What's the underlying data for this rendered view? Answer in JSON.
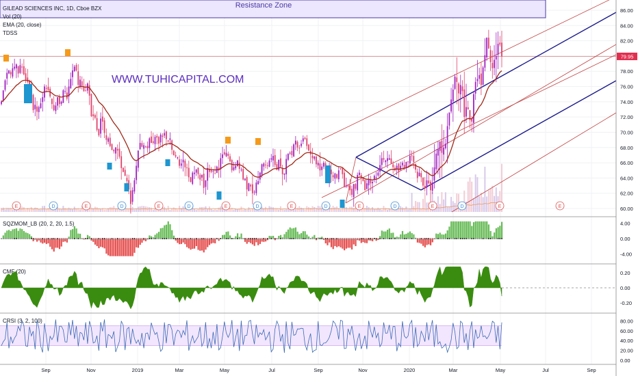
{
  "header": {
    "symbol": "GILEAD SCIENCES INC, 1D, Cboe BZX",
    "ind_vol": "Vol (20)",
    "ind_ema": "EMA (20, close)",
    "ind_tdss": "TDSS"
  },
  "watermark": "WWW.TUHICAPITAL.COM",
  "resistance_label": "Resistance Zone",
  "price_label": "79.95",
  "colors": {
    "up": "#a020c0",
    "down": "#e0406a",
    "ema": "#a02818",
    "channel_blue": "#1a1a8c",
    "channel_red": "#c04040",
    "osc_green": "#4caf3a",
    "osc_red": "#e03030",
    "cmf": "#3a8c10",
    "crsi": "#3a6ab0",
    "resistance": "#e8e0ff"
  },
  "chart_data": [
    {
      "type": "candlestick",
      "title": "GILEAD SCIENCES INC, 1D, Cboe BZX",
      "ylim": [
        59,
        87
      ],
      "y_ticks": [
        "86.00",
        "84.00",
        "82.00",
        "80.00",
        "78.00",
        "76.00",
        "74.00",
        "72.00",
        "70.00",
        "68.00",
        "66.00",
        "64.00",
        "62.00",
        "60.00"
      ],
      "x_labels": [
        "Sep",
        "Nov",
        "2019",
        "Mar",
        "May",
        "Jul",
        "Sep",
        "Nov",
        "2020",
        "Mar",
        "May",
        "Jul",
        "Sep"
      ],
      "last_price": 79.95,
      "resistance_zone": [
        85,
        87
      ],
      "close": [
        74,
        75.5,
        76.8,
        77.8,
        78.1,
        77.6,
        78.4,
        78.6,
        78.9,
        77.7,
        78.8,
        78.5,
        77.6,
        76.9,
        76.6,
        76.1,
        75.1,
        72.9,
        73.6,
        72.7,
        73.3,
        73.8,
        74.6,
        76.0,
        75.7,
        75.5,
        74.7,
        73.7,
        72.9,
        73.5,
        74.6,
        73.7,
        74.0,
        75.5,
        75.4,
        74.4,
        76.0,
        77.0,
        78.1,
        78.6,
        78.1,
        76.2,
        76.9,
        76.1,
        75.4,
        75.4,
        76.4,
        74.8,
        72.1,
        72.1,
        71.9,
        70.3,
        69.6,
        71.8,
        71.4,
        69.9,
        69.0,
        69.2,
        68.2,
        67.7,
        67.5,
        68.0,
        67.6,
        66.8,
        65.3,
        64.8,
        64.3,
        63.6,
        62.5,
        60.6,
        62.4,
        63.7,
        65.6,
        67.6,
        68.6,
        68.1,
        68.3,
        68.1,
        67.9,
        69.2,
        68.6,
        68.6,
        69.4,
        69.3,
        68.5,
        69.7,
        69.4,
        69.9,
        69.1,
        68.8,
        69.2,
        67.7,
        67.0,
        66.8,
        66.7,
        65.6,
        65.9,
        66.4,
        65.4,
        65.3,
        64.1,
        63.5,
        64.7,
        64.7,
        65.1,
        64.5,
        63.8,
        64.4,
        62.7,
        63.7,
        65.3,
        64.8,
        64.8,
        64.9,
        64.6,
        65.5,
        65.0,
        66.6,
        67.1,
        67.1,
        67.3,
        66.9,
        66.2,
        65.0,
        65.4,
        65.6,
        66.3,
        65.2,
        65.1,
        63.8,
        63.9,
        62.5,
        63.3,
        62.9,
        62.0,
        62.2,
        63.4,
        63.6,
        64.7,
        65.8,
        65.9,
        65.7,
        65.6,
        66.3,
        66.6,
        66.9,
        65.7,
        65.1,
        66.4,
        65.5,
        64.5,
        64.6,
        66.5,
        67.2,
        67.3,
        67.0,
        68.4,
        68.9,
        68.0,
        67.9,
        68.5,
        69.2,
        69.1,
        68.2,
        67.6,
        67.1,
        66.6,
        66.8,
        65.8,
        66.0,
        65.0,
        65.5,
        66.0,
        65.1,
        64.3,
        65.3,
        64.5,
        64.1,
        64.6,
        64.0,
        65.0,
        65.2,
        64.5,
        62.8,
        63.0,
        62.9,
        62.4,
        61.8,
        63.2,
        62.6,
        64.4,
        64.7,
        64.1,
        63.6,
        62.4,
        63.3,
        63.8,
        63.3,
        63.5,
        64.3,
        64.1,
        64.7,
        65.7,
        66.6,
        66.4,
        66.3,
        66.6,
        66.6,
        65.9,
        65.4,
        65.0,
        65.6,
        64.8,
        65.6,
        66.0,
        65.3,
        66.1,
        66.1,
        66.9,
        66.9,
        66.1,
        65.1,
        64.0,
        64.7,
        64.1,
        63.0,
        62.6,
        63.7,
        63.3,
        62.4,
        63.4,
        65.4,
        67.2,
        67.8,
        68.8,
        67.3,
        68.0,
        68.5,
        70.8,
        72.6,
        74.3,
        75.6,
        77.3,
        76.6,
        75.1,
        76.2,
        75.4,
        72.0,
        73.3,
        73.0,
        71.6,
        71.4,
        75.0,
        76.6,
        77.0,
        77.5,
        76.2,
        78.5,
        80.1,
        82.4,
        81.0,
        79.2,
        78.4,
        79.5,
        80.0,
        81.6,
        81.5,
        79.95
      ]
    },
    {
      "type": "bar",
      "title": "SQZMOM_LB (20, 2, 20, 1.5)",
      "ylim": [
        -5,
        5
      ],
      "y_ticks": [
        "4.00",
        "0.00",
        "-4.00"
      ]
    },
    {
      "type": "area",
      "title": "CMF (20)",
      "ylim": [
        -0.3,
        0.3
      ],
      "y_ticks": [
        "0.20",
        "0.00",
        "-0.20"
      ]
    },
    {
      "type": "line",
      "title": "CRSI (3, 2, 100)",
      "ylim": [
        -5,
        90
      ],
      "y_ticks": [
        "80.00",
        "60.00",
        "40.00",
        "20.00",
        "0.00"
      ],
      "band": [
        30,
        70
      ]
    }
  ]
}
